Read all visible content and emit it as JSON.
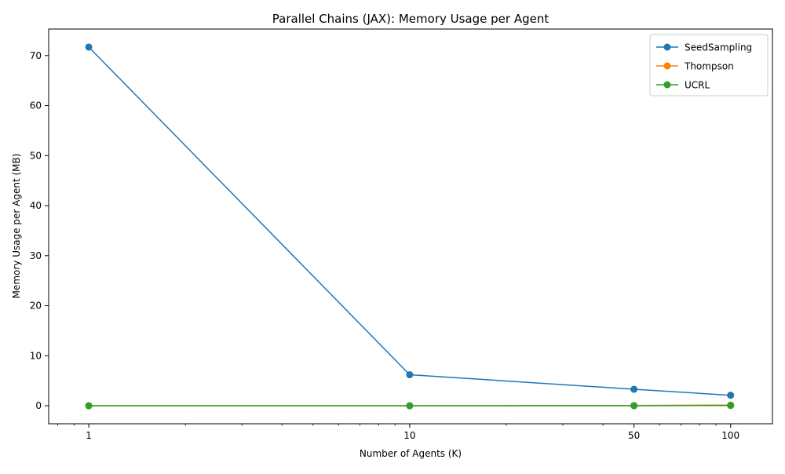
{
  "chart_data": {
    "type": "line",
    "title": "Parallel Chains (JAX): Memory Usage per Agent",
    "xlabel": "Number of Agents (K)",
    "ylabel": "Memory Usage per Agent (MB)",
    "x_scale": "log",
    "x": [
      1,
      10,
      50,
      100
    ],
    "x_ticks": [
      1,
      10,
      50,
      100
    ],
    "x_tick_labels": [
      "1",
      "10",
      "50",
      "100"
    ],
    "xlim": [
      0.75,
      135
    ],
    "y_ticks": [
      0,
      10,
      20,
      30,
      40,
      50,
      60,
      70
    ],
    "y_tick_labels": [
      "0",
      "10",
      "20",
      "30",
      "40",
      "50",
      "60",
      "70"
    ],
    "ylim": [
      -3.6,
      75.3
    ],
    "grid": false,
    "legend_position": "upper right",
    "series": [
      {
        "name": "SeedSampling",
        "color": "#1f77b4",
        "values": [
          71.7,
          6.2,
          3.3,
          2.1
        ]
      },
      {
        "name": "Thompson",
        "color": "#ff7f0e",
        "values": [
          0.0,
          0.0,
          0.05,
          0.15
        ]
      },
      {
        "name": "UCRL",
        "color": "#2ca02c",
        "values": [
          0.0,
          0.0,
          0.0,
          0.05
        ]
      }
    ]
  }
}
